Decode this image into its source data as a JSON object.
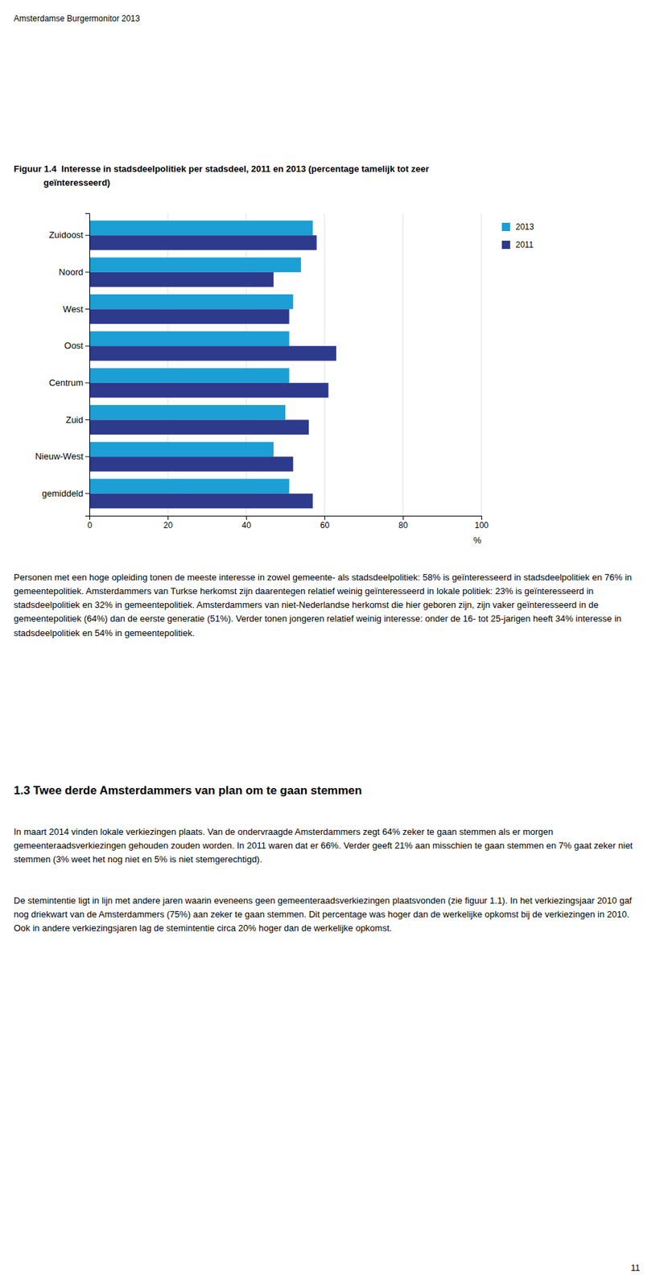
{
  "header": "Amsterdamse Burgermonitor 2013",
  "chart_data": {
    "type": "bar",
    "orientation": "horizontal",
    "title": "Figuur 1.4  Interesse in stadsdeelpolitiek per stadsdeel, 2011 en 2013 (percentage tamelijk tot zeer\n            geïnteresseerd)",
    "categories": [
      "gemiddeld",
      "Nieuw-West",
      "Zuid",
      "Centrum",
      "Oost",
      "West",
      "Noord",
      "Zuidoost"
    ],
    "series": [
      {
        "name": "2013",
        "color": "#1b9fd4",
        "values": [
          51,
          47,
          50,
          51,
          51,
          52,
          54,
          57
        ]
      },
      {
        "name": "2011",
        "color": "#2e3a8c",
        "values": [
          57,
          52,
          56,
          61,
          63,
          51,
          47,
          58
        ]
      }
    ],
    "xlim": [
      0,
      100
    ],
    "xticks": [
      0,
      20,
      40,
      60,
      80,
      100
    ],
    "xlabel": "%",
    "grid": true
  },
  "body_text": "Personen met een hoge opleiding tonen de meeste interesse in zowel gemeente- als stadsdeelpolitiek: 58% is geïnteresseerd in stadsdeelpolitiek en 76% in gemeentepolitiek. Amsterdammers van Turkse herkomst zijn daarentegen relatief weinig geïnteresseerd in lokale politiek: 23% is geïnteresseerd in stadsdeelpolitiek en 32% in gemeentepolitiek. Amsterdammers van niet-Nederlandse herkomst die hier geboren zijn, zijn vaker geïnteresseerd in de gemeentepolitiek (64%) dan de eerste generatie (51%). Verder tonen jongeren relatief weinig interesse: onder de 16- tot 25-jarigen heeft 34% interesse in stadsdeelpolitiek en 54% in gemeentepolitiek.",
  "section_title": "1.3  Twee derde Amsterdammers van plan om te gaan stemmen",
  "section_paragraphs": [
    "In maart 2014 vinden lokale verkiezingen plaats. Van de ondervraagde Amsterdammers zegt 64% zeker te gaan stemmen als er morgen gemeenteraadsverkiezingen gehouden zouden worden. In 2011 waren dat er 66%. Verder geeft 21% aan misschien te gaan stemmen en 7% gaat zeker niet stemmen (3% weet het nog niet en 5% is niet stemgerechtigd).",
    "De stemintentie ligt in lijn met andere jaren waarin eveneens geen gemeenteraadsverkiezingen plaatsvonden (zie figuur 1.1). In het verkiezingsjaar 2010 gaf nog driekwart van de Amsterdammers (75%) aan zeker te gaan stemmen. Dit percentage was hoger dan de werkelijke opkomst bij de verkiezingen in 2010. Ook in andere verkiezingsjaren lag de stemintentie circa 20% hoger dan de werkelijke opkomst."
  ],
  "page_number": "11"
}
